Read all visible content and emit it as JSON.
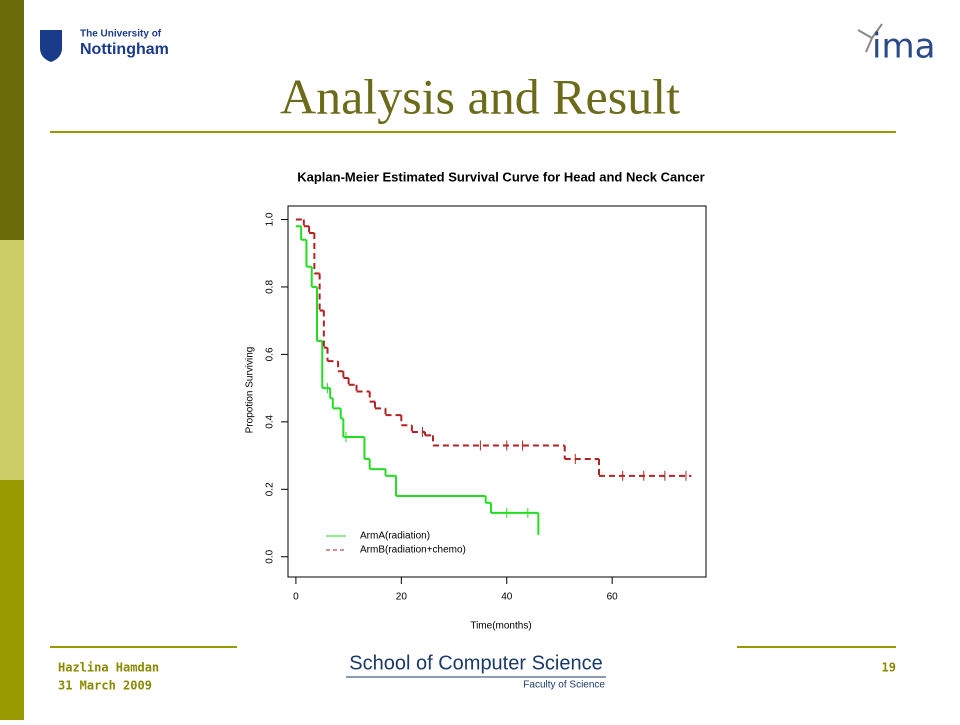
{
  "header": {
    "logo_left": {
      "line1": "The University of",
      "line2": "Nottingham"
    },
    "logo_right": "ima",
    "title": "Analysis and Result"
  },
  "chart_data": {
    "type": "step",
    "title": "Kaplan-Meier Estimated  Survival Curve for Head and Neck Cancer",
    "x_label": "Time(months)",
    "y_label": "Propotion Surviving",
    "xlim": [
      -1.5,
      77.8
    ],
    "ylim": [
      -0.06,
      1.04
    ],
    "xticks": [
      0,
      20,
      40,
      60
    ],
    "yticks": [
      {
        "value": 0,
        "label": "0.0"
      },
      {
        "value": 0.2,
        "label": "0.2"
      },
      {
        "value": 0.4,
        "label": "0.4"
      },
      {
        "value": 0.6,
        "label": "0.6"
      },
      {
        "value": 0.8,
        "label": "0.8"
      },
      {
        "value": 1,
        "label": "1.0"
      }
    ],
    "grid": false,
    "legend": "bottom left",
    "series": [
      {
        "name": "ArmA(radiation)",
        "color": "#22dd22",
        "linestyle": "solid",
        "x": [
          0,
          1,
          2,
          3,
          4,
          5,
          6.5,
          7,
          8.5,
          9,
          13,
          14,
          17,
          19,
          36,
          37,
          46
        ],
        "values": [
          0.98,
          0.94,
          0.86,
          0.8,
          0.64,
          0.5,
          0.47,
          0.44,
          0.41,
          0.355,
          0.29,
          0.26,
          0.24,
          0.18,
          0.16,
          0.13,
          0.065
        ],
        "censored": [
          6,
          9.5,
          40,
          44
        ]
      },
      {
        "name": "ArmB(radiation+chemo)",
        "color": "#b22222",
        "linestyle": "dashed",
        "x": [
          0,
          1.5,
          2.5,
          3.5,
          4.5,
          5.3,
          6,
          8,
          9,
          10,
          11.5,
          14,
          15,
          17,
          20,
          22,
          24.5,
          26,
          51,
          57.5,
          75
        ],
        "values": [
          1,
          0.98,
          0.96,
          0.84,
          0.73,
          0.62,
          0.58,
          0.55,
          0.53,
          0.51,
          0.49,
          0.46,
          0.44,
          0.42,
          0.39,
          0.37,
          0.36,
          0.33,
          0.29,
          0.24,
          0.24
        ],
        "censored": [
          24,
          35,
          40,
          43,
          53,
          62,
          66,
          70,
          74
        ]
      }
    ]
  },
  "footer": {
    "author": "Hazlina Hamdan",
    "date": "31 March 2009",
    "school": "School of Computer Science",
    "faculty": "Faculty of Science",
    "page": 19
  }
}
